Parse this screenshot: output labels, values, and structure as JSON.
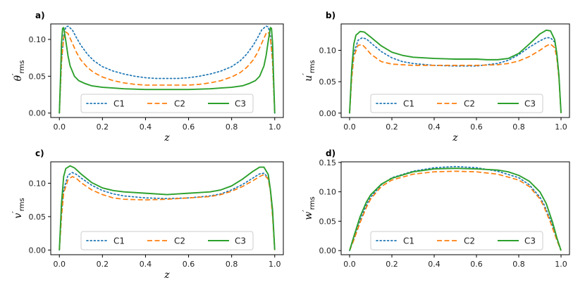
{
  "colors": {
    "C1": "#1f77b4",
    "C2": "#ff7f0e",
    "C3": "#2ca02c"
  },
  "chart_data": [
    {
      "panel": "a)",
      "type": "line",
      "xlabel": "z",
      "ylabel": "θ",
      "ylabel_sub": "rms",
      "xlim": [
        -0.04,
        1.04
      ],
      "ylim": [
        -0.006,
        0.121
      ],
      "xticks": [
        "0.0",
        "0.2",
        "0.4",
        "0.6",
        "0.8",
        "1.0"
      ],
      "yticks": [
        "0.00",
        "0.05",
        "0.10"
      ],
      "legend_location": "lower-center",
      "series": [
        {
          "name": "C1",
          "style": "dotted",
          "x": [
            0,
            0.01,
            0.02,
            0.03,
            0.04,
            0.06,
            0.08,
            0.1,
            0.13,
            0.16,
            0.2,
            0.25,
            0.3,
            0.35,
            0.4,
            0.45,
            0.5,
            0.55,
            0.6,
            0.65,
            0.7,
            0.75,
            0.8,
            0.84,
            0.87,
            0.9,
            0.92,
            0.94,
            0.96,
            0.97,
            0.98,
            0.99,
            1.0
          ],
          "y": [
            0,
            0.07,
            0.105,
            0.117,
            0.118,
            0.113,
            0.102,
            0.092,
            0.08,
            0.071,
            0.063,
            0.057,
            0.053,
            0.05,
            0.048,
            0.047,
            0.047,
            0.047,
            0.048,
            0.05,
            0.053,
            0.057,
            0.063,
            0.071,
            0.08,
            0.092,
            0.102,
            0.113,
            0.118,
            0.117,
            0.105,
            0.07,
            0
          ]
        },
        {
          "name": "C2",
          "style": "dashed",
          "x": [
            0,
            0.01,
            0.02,
            0.03,
            0.04,
            0.06,
            0.08,
            0.1,
            0.13,
            0.16,
            0.2,
            0.25,
            0.3,
            0.35,
            0.4,
            0.45,
            0.5,
            0.55,
            0.6,
            0.65,
            0.7,
            0.75,
            0.8,
            0.84,
            0.87,
            0.9,
            0.92,
            0.94,
            0.96,
            0.97,
            0.98,
            0.99,
            1.0
          ],
          "y": [
            0,
            0.07,
            0.102,
            0.11,
            0.108,
            0.095,
            0.082,
            0.072,
            0.062,
            0.055,
            0.049,
            0.044,
            0.041,
            0.039,
            0.038,
            0.038,
            0.038,
            0.038,
            0.038,
            0.039,
            0.041,
            0.044,
            0.049,
            0.055,
            0.062,
            0.072,
            0.082,
            0.095,
            0.108,
            0.11,
            0.102,
            0.07,
            0
          ]
        },
        {
          "name": "C3",
          "style": "solid",
          "x": [
            0,
            0.005,
            0.01,
            0.015,
            0.02,
            0.03,
            0.04,
            0.05,
            0.07,
            0.09,
            0.12,
            0.15,
            0.2,
            0.25,
            0.3,
            0.4,
            0.5,
            0.6,
            0.7,
            0.75,
            0.8,
            0.85,
            0.88,
            0.91,
            0.93,
            0.95,
            0.96,
            0.97,
            0.98,
            0.985,
            0.99,
            0.995,
            1.0
          ],
          "y": [
            0,
            0.045,
            0.095,
            0.115,
            0.116,
            0.098,
            0.078,
            0.064,
            0.05,
            0.044,
            0.04,
            0.037,
            0.035,
            0.034,
            0.033,
            0.032,
            0.032,
            0.032,
            0.033,
            0.034,
            0.035,
            0.037,
            0.04,
            0.044,
            0.05,
            0.064,
            0.078,
            0.098,
            0.116,
            0.115,
            0.095,
            0.045,
            0
          ]
        }
      ]
    },
    {
      "panel": "b)",
      "type": "line",
      "xlabel": "z",
      "ylabel": "u",
      "ylabel_sub": "rms",
      "xlim": [
        -0.04,
        1.04
      ],
      "ylim": [
        -0.007,
        0.142
      ],
      "xticks": [
        "0.0",
        "0.2",
        "0.4",
        "0.6",
        "0.8",
        "1.0"
      ],
      "yticks": [
        "0.00",
        "0.05",
        "0.10"
      ],
      "legend_location": "lower-center",
      "series": [
        {
          "name": "C1",
          "style": "dotted",
          "x": [
            0,
            0.01,
            0.02,
            0.04,
            0.06,
            0.08,
            0.1,
            0.15,
            0.2,
            0.25,
            0.3,
            0.4,
            0.5,
            0.6,
            0.7,
            0.75,
            0.8,
            0.85,
            0.9,
            0.93,
            0.95,
            0.97,
            0.98,
            0.99,
            1.0
          ],
          "y": [
            0,
            0.06,
            0.095,
            0.116,
            0.12,
            0.118,
            0.112,
            0.098,
            0.088,
            0.082,
            0.079,
            0.076,
            0.075,
            0.075,
            0.079,
            0.084,
            0.093,
            0.105,
            0.115,
            0.12,
            0.12,
            0.113,
            0.095,
            0.06,
            0
          ]
        },
        {
          "name": "C2",
          "style": "dashed",
          "x": [
            0,
            0.01,
            0.02,
            0.04,
            0.06,
            0.08,
            0.1,
            0.15,
            0.2,
            0.25,
            0.3,
            0.4,
            0.5,
            0.6,
            0.7,
            0.75,
            0.8,
            0.85,
            0.9,
            0.93,
            0.95,
            0.97,
            0.98,
            0.99,
            1.0
          ],
          "y": [
            0,
            0.055,
            0.09,
            0.108,
            0.109,
            0.102,
            0.094,
            0.082,
            0.078,
            0.077,
            0.076,
            0.076,
            0.076,
            0.076,
            0.077,
            0.079,
            0.083,
            0.09,
            0.1,
            0.107,
            0.11,
            0.104,
            0.088,
            0.055,
            0
          ]
        },
        {
          "name": "C3",
          "style": "solid",
          "x": [
            0,
            0.01,
            0.02,
            0.03,
            0.05,
            0.07,
            0.1,
            0.15,
            0.2,
            0.25,
            0.3,
            0.4,
            0.5,
            0.6,
            0.65,
            0.7,
            0.75,
            0.8,
            0.85,
            0.9,
            0.93,
            0.95,
            0.97,
            0.98,
            0.99,
            1.0
          ],
          "y": [
            0,
            0.07,
            0.11,
            0.124,
            0.13,
            0.129,
            0.121,
            0.107,
            0.097,
            0.092,
            0.089,
            0.087,
            0.086,
            0.086,
            0.085,
            0.085,
            0.087,
            0.095,
            0.11,
            0.126,
            0.132,
            0.131,
            0.117,
            0.095,
            0.06,
            0
          ]
        }
      ]
    },
    {
      "panel": "c)",
      "type": "line",
      "xlabel": "z",
      "ylabel": "v",
      "ylabel_sub": "rms",
      "xlim": [
        -0.04,
        1.04
      ],
      "ylim": [
        -0.007,
        0.132
      ],
      "xticks": [
        "0.0",
        "0.2",
        "0.4",
        "0.6",
        "0.8",
        "1.0"
      ],
      "yticks": [
        "0.00",
        "0.05",
        "0.10"
      ],
      "legend_location": "lower-center",
      "series": [
        {
          "name": "C1",
          "style": "dotted",
          "x": [
            0,
            0.01,
            0.02,
            0.04,
            0.06,
            0.08,
            0.1,
            0.15,
            0.2,
            0.25,
            0.3,
            0.4,
            0.5,
            0.6,
            0.7,
            0.75,
            0.8,
            0.85,
            0.9,
            0.93,
            0.95,
            0.97,
            0.98,
            0.99,
            1.0
          ],
          "y": [
            0,
            0.055,
            0.09,
            0.112,
            0.116,
            0.113,
            0.108,
            0.097,
            0.089,
            0.084,
            0.081,
            0.078,
            0.077,
            0.078,
            0.081,
            0.084,
            0.09,
            0.098,
            0.108,
            0.114,
            0.115,
            0.108,
            0.09,
            0.055,
            0
          ]
        },
        {
          "name": "C2",
          "style": "dashed",
          "x": [
            0,
            0.01,
            0.02,
            0.04,
            0.06,
            0.08,
            0.1,
            0.15,
            0.2,
            0.25,
            0.3,
            0.4,
            0.5,
            0.6,
            0.7,
            0.75,
            0.8,
            0.85,
            0.9,
            0.93,
            0.95,
            0.97,
            0.98,
            0.99,
            1.0
          ],
          "y": [
            0,
            0.05,
            0.085,
            0.105,
            0.11,
            0.107,
            0.101,
            0.09,
            0.083,
            0.078,
            0.076,
            0.075,
            0.076,
            0.078,
            0.08,
            0.083,
            0.088,
            0.095,
            0.104,
            0.11,
            0.113,
            0.106,
            0.088,
            0.05,
            0
          ]
        },
        {
          "name": "C3",
          "style": "solid",
          "x": [
            0,
            0.01,
            0.02,
            0.03,
            0.05,
            0.07,
            0.1,
            0.15,
            0.2,
            0.25,
            0.3,
            0.4,
            0.5,
            0.55,
            0.6,
            0.65,
            0.7,
            0.75,
            0.8,
            0.85,
            0.9,
            0.93,
            0.95,
            0.97,
            0.98,
            0.99,
            1.0
          ],
          "y": [
            0,
            0.07,
            0.11,
            0.122,
            0.126,
            0.123,
            0.114,
            0.101,
            0.093,
            0.089,
            0.087,
            0.085,
            0.083,
            0.084,
            0.085,
            0.086,
            0.087,
            0.09,
            0.096,
            0.106,
            0.118,
            0.124,
            0.124,
            0.113,
            0.09,
            0.06,
            0
          ]
        }
      ]
    },
    {
      "panel": "d)",
      "type": "line",
      "xlabel": "",
      "ylabel": "w",
      "ylabel_sub": "rms",
      "xlim": [
        -0.04,
        1.04
      ],
      "ylim": [
        -0.007,
        0.151
      ],
      "xticks": [
        "0.0",
        "0.2",
        "0.4",
        "0.6",
        "0.8",
        "1.0"
      ],
      "yticks": [
        "0.00",
        "0.05",
        "0.10",
        "0.15"
      ],
      "legend_location": "lower-center",
      "series": [
        {
          "name": "C1",
          "style": "dotted",
          "x": [
            0,
            0.02,
            0.05,
            0.08,
            0.1,
            0.15,
            0.2,
            0.3,
            0.4,
            0.5,
            0.6,
            0.7,
            0.8,
            0.85,
            0.9,
            0.92,
            0.95,
            0.98,
            1.0
          ],
          "y": [
            0,
            0.02,
            0.052,
            0.078,
            0.091,
            0.112,
            0.124,
            0.135,
            0.141,
            0.143,
            0.141,
            0.135,
            0.124,
            0.112,
            0.091,
            0.078,
            0.052,
            0.02,
            0
          ]
        },
        {
          "name": "C2",
          "style": "dashed",
          "x": [
            0,
            0.02,
            0.05,
            0.08,
            0.1,
            0.15,
            0.2,
            0.3,
            0.4,
            0.5,
            0.6,
            0.7,
            0.8,
            0.85,
            0.9,
            0.92,
            0.95,
            0.98,
            1.0
          ],
          "y": [
            0,
            0.018,
            0.048,
            0.074,
            0.088,
            0.109,
            0.12,
            0.13,
            0.134,
            0.135,
            0.134,
            0.13,
            0.12,
            0.109,
            0.088,
            0.074,
            0.048,
            0.018,
            0
          ]
        },
        {
          "name": "C3",
          "style": "solid",
          "x": [
            0,
            0.02,
            0.05,
            0.08,
            0.1,
            0.15,
            0.2,
            0.3,
            0.4,
            0.5,
            0.6,
            0.7,
            0.75,
            0.8,
            0.85,
            0.9,
            0.93,
            0.96,
            0.98,
            1.0
          ],
          "y": [
            0,
            0.024,
            0.058,
            0.083,
            0.095,
            0.113,
            0.123,
            0.134,
            0.139,
            0.14,
            0.139,
            0.137,
            0.134,
            0.128,
            0.118,
            0.1,
            0.08,
            0.048,
            0.022,
            0
          ]
        }
      ]
    }
  ]
}
